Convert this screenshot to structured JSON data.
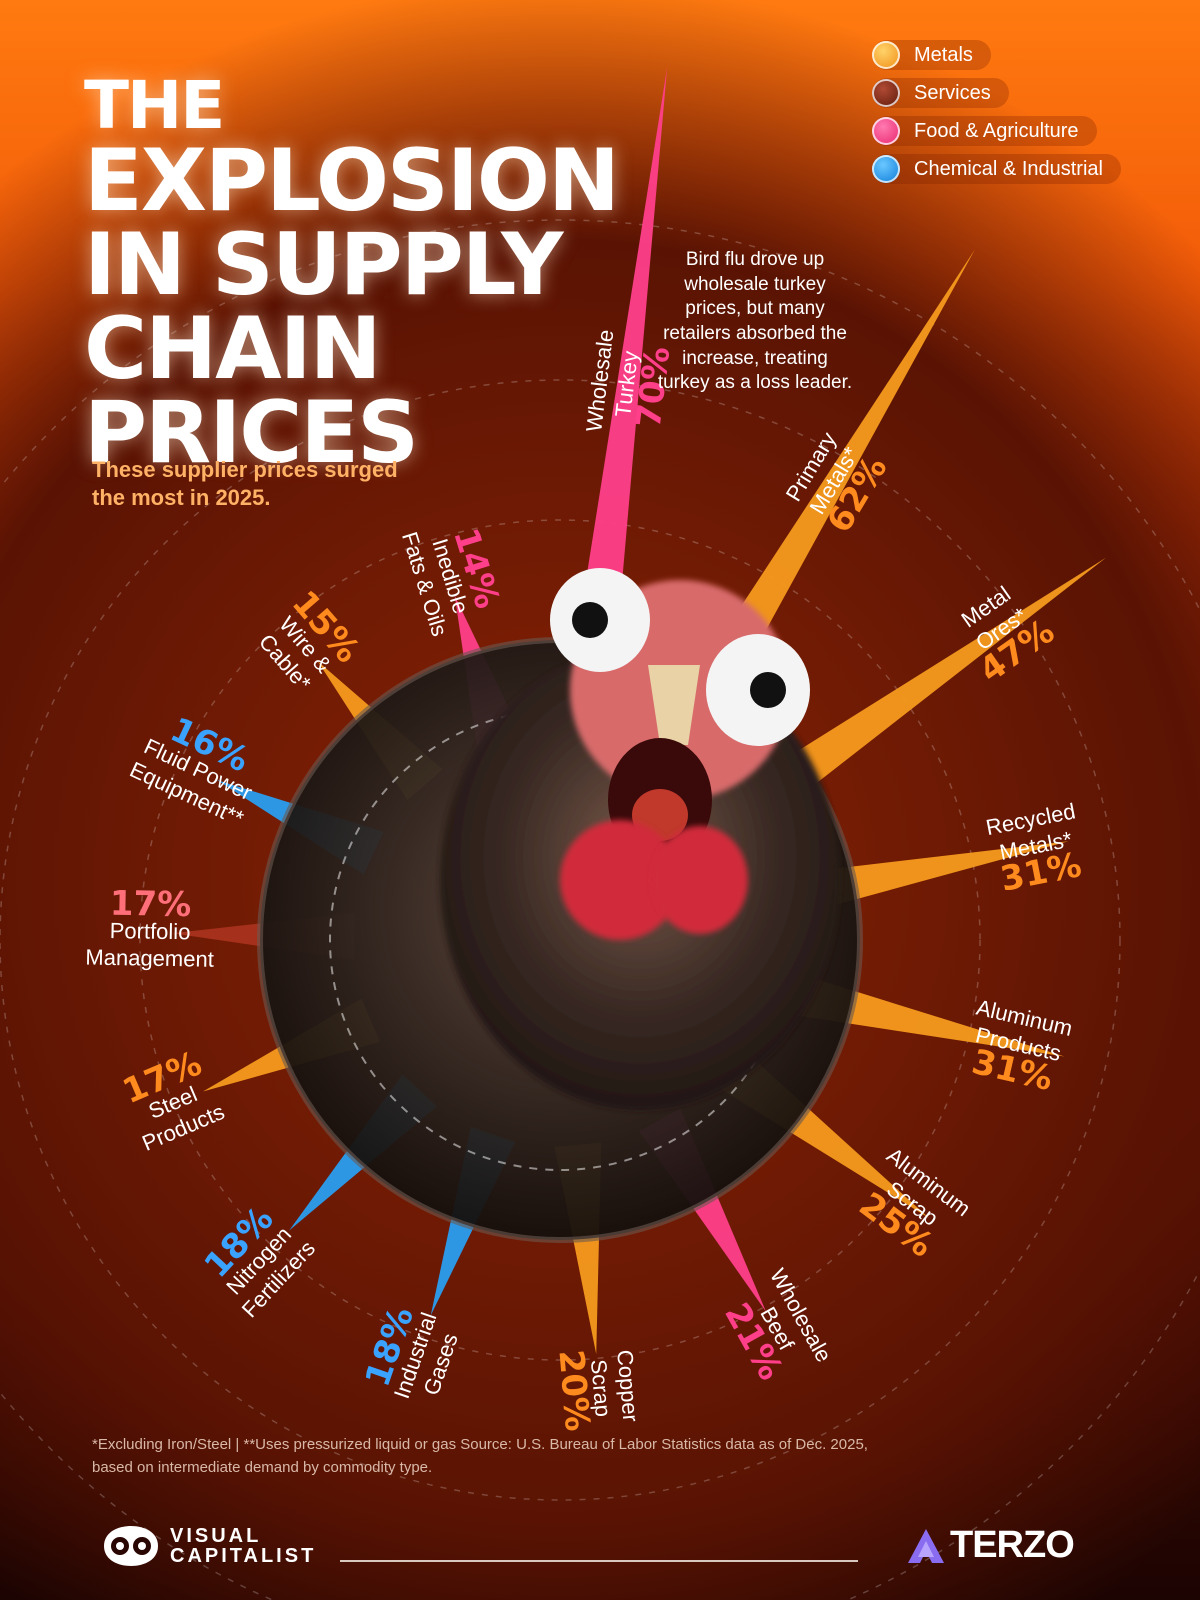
{
  "title": {
    "line1": "THE",
    "line2": "EXPLOSION",
    "line3": "IN SUPPLY",
    "line4": "CHAIN PRICES"
  },
  "subtitle": "These supplier prices surged the most in 2025.",
  "annotation": "Bird flu drove up wholesale turkey prices, but many retailers absorbed the increase, treating turkey as a loss leader.",
  "legend": [
    {
      "label": "Metals",
      "color": "#f5a623"
    },
    {
      "label": "Services",
      "color": "#8a2a1a"
    },
    {
      "label": "Food & Agriculture",
      "color": "#ff3f8a"
    },
    {
      "label": "Chemical & Industrial",
      "color": "#1ea1f2"
    }
  ],
  "category_colors": {
    "Metals": "#f59a1e",
    "Services": "#a8321e",
    "Food & Agriculture": "#ff3f8a",
    "Chemical & Industrial": "#2a9ef0"
  },
  "label_colors": {
    "Metals": "#ff8a1e",
    "Services": "#ff6f7a",
    "Food & Agriculture": "#ff3f8a",
    "Chemical & Industrial": "#3aa2ff"
  },
  "chart_data": {
    "type": "bar",
    "layout": "radial",
    "unit": "%",
    "categories": [
      {
        "name": [
          "Wholesale",
          "Turkey"
        ],
        "value": 70,
        "group": "Food & Agriculture"
      },
      {
        "name": [
          "Primary",
          "Metals*"
        ],
        "value": 62,
        "group": "Metals"
      },
      {
        "name": [
          "Metal",
          "Ores*"
        ],
        "value": 47,
        "group": "Metals"
      },
      {
        "name": [
          "Recycled",
          "Metals*"
        ],
        "value": 31,
        "group": "Metals"
      },
      {
        "name": [
          "Aluminum",
          "Products"
        ],
        "value": 31,
        "group": "Metals"
      },
      {
        "name": [
          "Aluminum",
          "Scrap"
        ],
        "value": 25,
        "group": "Metals"
      },
      {
        "name": [
          "Wholesale",
          "Beef"
        ],
        "value": 21,
        "group": "Food & Agriculture"
      },
      {
        "name": [
          "Copper",
          "Scrap"
        ],
        "value": 20,
        "group": "Metals"
      },
      {
        "name": [
          "Industrial",
          "Gases"
        ],
        "value": 18,
        "group": "Chemical & Industrial"
      },
      {
        "name": [
          "Nitrogen",
          "Fertilizers"
        ],
        "value": 18,
        "group": "Chemical & Industrial"
      },
      {
        "name": [
          "Steel",
          "Products"
        ],
        "value": 17,
        "group": "Metals"
      },
      {
        "name": [
          "Portfolio",
          "Management"
        ],
        "value": 17,
        "group": "Services"
      },
      {
        "name": [
          "Fluid Power",
          "Equipment**"
        ],
        "value": 16,
        "group": "Chemical & Industrial"
      },
      {
        "name": [
          "Wire &",
          "Cable*"
        ],
        "value": 15,
        "group": "Metals"
      },
      {
        "name": [
          "Inedible",
          "Fats & Oils"
        ],
        "value": 14,
        "group": "Food & Agriculture"
      }
    ]
  },
  "footnote": {
    "line1": "*Excluding Iron/Steel | **Uses pressurized liquid or gas Source: U.S. Bureau of Labor Statistics data as of Dec. 2025,",
    "line2": "based on intermediate demand by commodity type."
  },
  "brand_left": {
    "line1": "VISUAL",
    "line2": "CAPITALIST"
  },
  "brand_right": "TERZO"
}
